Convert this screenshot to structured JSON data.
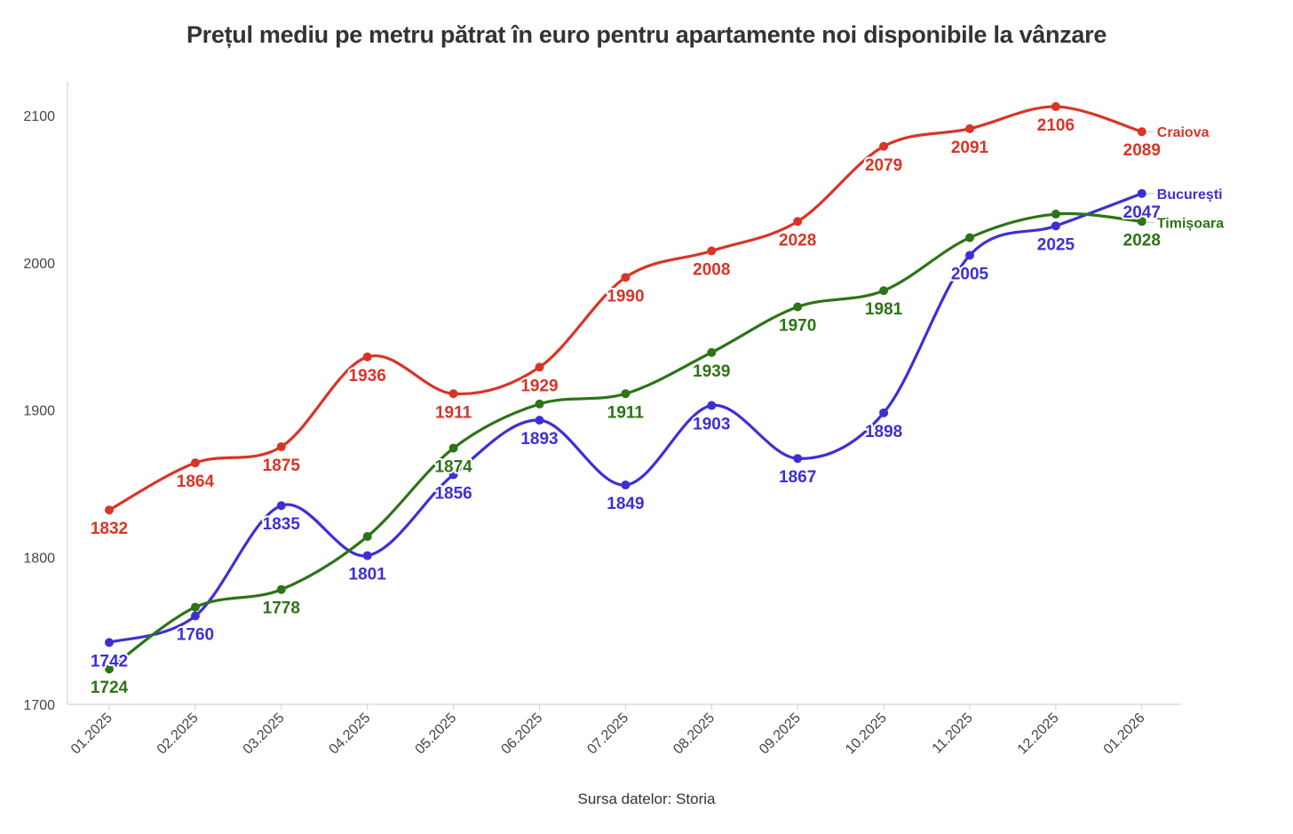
{
  "chart_data": {
    "type": "line",
    "title": "Prețul mediu pe metru pătrat în euro pentru apartamente noi disponibile la vânzare",
    "source": "Sursa datelor: Storia",
    "xlabel": "",
    "ylabel": "",
    "categories": [
      "01.2025",
      "02.2025",
      "03.2025",
      "04.2025",
      "05.2025",
      "06.2025",
      "07.2025",
      "08.2025",
      "09.2025",
      "10.2025",
      "11.2025",
      "12.2025",
      "01.2026"
    ],
    "ylim": [
      1700,
      2120
    ],
    "yticks": [
      1700,
      1800,
      1900,
      2000,
      2100
    ],
    "grid": false,
    "series": [
      {
        "name": "Craiova",
        "color": "#d93426",
        "values": [
          1832,
          1864,
          1875,
          1936,
          1911,
          1929,
          1990,
          2008,
          2028,
          2079,
          2091,
          2106,
          2089
        ]
      },
      {
        "name": "București",
        "color": "#3d2fd6",
        "values": [
          1742,
          1760,
          1835,
          1801,
          1856,
          1893,
          1849,
          1903,
          1867,
          1898,
          2005,
          2025,
          2047
        ]
      },
      {
        "name": "Timișoara",
        "color": "#2d7317",
        "values": [
          1724,
          1766,
          1778,
          1814,
          1874,
          1904,
          1911,
          1939,
          1970,
          1981,
          2017,
          2033,
          2028
        ]
      }
    ],
    "data_labels": {
      "Craiova": [
        "1832",
        "1864",
        "1875",
        "1936",
        "1911",
        "1929",
        "1990",
        "2008",
        "2028",
        "2079",
        "2091",
        "2106",
        "2089"
      ],
      "București": [
        "1742",
        "1760",
        "1835",
        "1801",
        "1856",
        "1893",
        "1849",
        "1903",
        "1867",
        "1898",
        "2005",
        "2025",
        "2047"
      ],
      "Timișoara": [
        "1724",
        "",
        "1778",
        "",
        "1874",
        "",
        "1911",
        "1939",
        "1970",
        "1981",
        "",
        "",
        "2028"
      ]
    }
  }
}
